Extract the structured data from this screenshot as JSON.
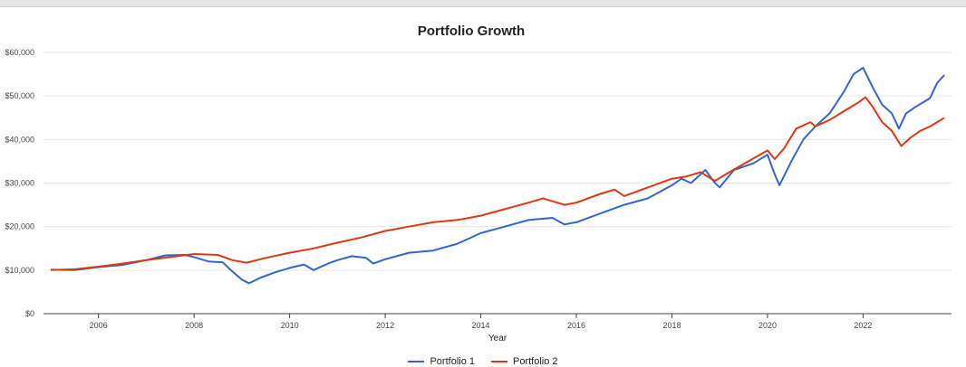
{
  "chart_data": {
    "type": "line",
    "title": "Portfolio Growth",
    "xlabel": "Year",
    "ylabel": "",
    "xlim": [
      2004.85,
      2023.85
    ],
    "ylim": [
      0,
      60000
    ],
    "x_ticks": [
      2006,
      2008,
      2010,
      2012,
      2014,
      2016,
      2018,
      2020,
      2022
    ],
    "y_ticks": [
      0,
      10000,
      20000,
      30000,
      40000,
      50000,
      60000
    ],
    "y_tick_labels": [
      "$0",
      "$10,000",
      "$20,000",
      "$30,000",
      "$40,000",
      "$50,000",
      "$60,000"
    ],
    "grid": true,
    "legend_position": "bottom",
    "series": [
      {
        "name": "Portfolio 1",
        "color": "#3366cc",
        "points": [
          [
            2005.0,
            10100
          ],
          [
            2005.5,
            10000
          ],
          [
            2006.0,
            10700
          ],
          [
            2006.5,
            11200
          ],
          [
            2007.0,
            12300
          ],
          [
            2007.4,
            13400
          ],
          [
            2007.8,
            13500
          ],
          [
            2008.0,
            13000
          ],
          [
            2008.3,
            12000
          ],
          [
            2008.6,
            11800
          ],
          [
            2008.75,
            10200
          ],
          [
            2009.0,
            7800
          ],
          [
            2009.15,
            7000
          ],
          [
            2009.4,
            8300
          ],
          [
            2009.7,
            9500
          ],
          [
            2010.0,
            10500
          ],
          [
            2010.3,
            11300
          ],
          [
            2010.5,
            10000
          ],
          [
            2010.8,
            11500
          ],
          [
            2011.0,
            12300
          ],
          [
            2011.3,
            13200
          ],
          [
            2011.6,
            12800
          ],
          [
            2011.75,
            11500
          ],
          [
            2012.0,
            12500
          ],
          [
            2012.5,
            14000
          ],
          [
            2013.0,
            14500
          ],
          [
            2013.5,
            16000
          ],
          [
            2014.0,
            18500
          ],
          [
            2014.5,
            20000
          ],
          [
            2015.0,
            21500
          ],
          [
            2015.5,
            22000
          ],
          [
            2015.75,
            20500
          ],
          [
            2016.0,
            21000
          ],
          [
            2016.5,
            23000
          ],
          [
            2017.0,
            25000
          ],
          [
            2017.5,
            26500
          ],
          [
            2018.0,
            29500
          ],
          [
            2018.2,
            31000
          ],
          [
            2018.4,
            30000
          ],
          [
            2018.7,
            33000
          ],
          [
            2018.9,
            30000
          ],
          [
            2019.0,
            29000
          ],
          [
            2019.3,
            33000
          ],
          [
            2019.7,
            34500
          ],
          [
            2020.0,
            36500
          ],
          [
            2020.15,
            32000
          ],
          [
            2020.25,
            29500
          ],
          [
            2020.5,
            35000
          ],
          [
            2020.75,
            40000
          ],
          [
            2021.0,
            43000
          ],
          [
            2021.3,
            46000
          ],
          [
            2021.6,
            51000
          ],
          [
            2021.8,
            55000
          ],
          [
            2022.0,
            56500
          ],
          [
            2022.2,
            52000
          ],
          [
            2022.4,
            48000
          ],
          [
            2022.6,
            46000
          ],
          [
            2022.75,
            42500
          ],
          [
            2022.9,
            46000
          ],
          [
            2023.1,
            47500
          ],
          [
            2023.4,
            49500
          ],
          [
            2023.55,
            53000
          ],
          [
            2023.7,
            54800
          ]
        ]
      },
      {
        "name": "Portfolio 2",
        "color": "#dc3912",
        "points": [
          [
            2005.0,
            10000
          ],
          [
            2005.5,
            10200
          ],
          [
            2006.0,
            10800
          ],
          [
            2006.5,
            11500
          ],
          [
            2007.0,
            12300
          ],
          [
            2007.5,
            13000
          ],
          [
            2008.0,
            13700
          ],
          [
            2008.5,
            13500
          ],
          [
            2008.8,
            12300
          ],
          [
            2009.1,
            11700
          ],
          [
            2009.5,
            12800
          ],
          [
            2010.0,
            14000
          ],
          [
            2010.5,
            15000
          ],
          [
            2011.0,
            16300
          ],
          [
            2011.5,
            17500
          ],
          [
            2012.0,
            19000
          ],
          [
            2012.5,
            20000
          ],
          [
            2013.0,
            21000
          ],
          [
            2013.5,
            21500
          ],
          [
            2014.0,
            22500
          ],
          [
            2014.5,
            24000
          ],
          [
            2015.0,
            25500
          ],
          [
            2015.3,
            26500
          ],
          [
            2015.75,
            25000
          ],
          [
            2016.0,
            25500
          ],
          [
            2016.5,
            27500
          ],
          [
            2016.8,
            28500
          ],
          [
            2017.0,
            27000
          ],
          [
            2017.5,
            29000
          ],
          [
            2018.0,
            31000
          ],
          [
            2018.3,
            31500
          ],
          [
            2018.6,
            32500
          ],
          [
            2018.9,
            30500
          ],
          [
            2019.2,
            32500
          ],
          [
            2019.6,
            35000
          ],
          [
            2020.0,
            37500
          ],
          [
            2020.15,
            35500
          ],
          [
            2020.35,
            38000
          ],
          [
            2020.6,
            42500
          ],
          [
            2020.9,
            44000
          ],
          [
            2021.0,
            43000
          ],
          [
            2021.3,
            44500
          ],
          [
            2021.6,
            46500
          ],
          [
            2021.9,
            48500
          ],
          [
            2022.05,
            49700
          ],
          [
            2022.2,
            47500
          ],
          [
            2022.4,
            44000
          ],
          [
            2022.6,
            42000
          ],
          [
            2022.8,
            38500
          ],
          [
            2023.0,
            40500
          ],
          [
            2023.2,
            42000
          ],
          [
            2023.4,
            43000
          ],
          [
            2023.55,
            44000
          ],
          [
            2023.7,
            45000
          ]
        ]
      }
    ]
  }
}
